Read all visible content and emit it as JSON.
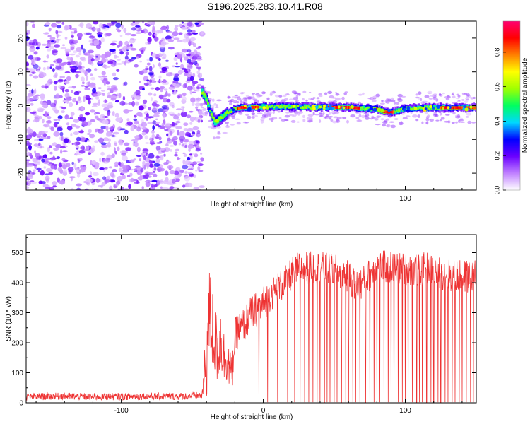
{
  "title": "S196.2025.283.10.41.R08",
  "chart_data": [
    {
      "type": "heatmap",
      "title": "S196.2025.283.10.41.R08",
      "xlabel": "Height of straight line (km)",
      "ylabel": "Frequency (Hz)",
      "xlim": [
        -167,
        150
      ],
      "ylim": [
        -25,
        25
      ],
      "xticks": [
        -100,
        0,
        100
      ],
      "yticks": [
        -20,
        -10,
        0,
        10,
        20
      ],
      "colorbar": {
        "label": "Normalized spectral amplitude",
        "range": [
          0,
          0.98
        ],
        "ticks": [
          "0.0",
          "0.2",
          "0.4",
          "0.6",
          "0.8"
        ],
        "colors": [
          "#ffffff",
          "#c080ff",
          "#6a00ff",
          "#0000ff",
          "#00d8ff",
          "#00ff60",
          "#a0ff00",
          "#ffff00",
          "#ff8000",
          "#ff0000",
          "#ff0070"
        ]
      },
      "noise_region_x": [
        -167,
        -43
      ],
      "tone_track": {
        "x": [
          -43,
          -40,
          -37,
          -34,
          -31,
          -28,
          -25,
          -20,
          -15,
          -10,
          -5,
          0,
          10,
          20,
          40,
          60,
          80,
          85,
          90,
          95,
          100,
          120,
          150
        ],
        "frequency": [
          4,
          2,
          -2,
          -5,
          -4,
          -3,
          -2,
          -1,
          -0.5,
          -0.5,
          -0.5,
          -0.3,
          -0.3,
          -0.3,
          -0.5,
          -0.5,
          -1,
          -1.8,
          -2,
          -1.5,
          -0.8,
          -0.6,
          -0.6
        ],
        "peak_amplitude_segments": [
          [
            -18,
            -12
          ],
          [
            -8,
            -3
          ],
          [
            45,
            68
          ],
          [
            80,
            92
          ],
          [
            125,
            150
          ]
        ]
      }
    },
    {
      "type": "line",
      "xlabel": "Height of straight line (km)",
      "ylabel": "SNR (10 * v/v)",
      "xlim": [
        -167,
        150
      ],
      "ylim": [
        0,
        560
      ],
      "xticks": [
        -100,
        0,
        100
      ],
      "yticks": [
        0,
        100,
        200,
        300,
        400,
        500
      ],
      "color": "#ee3333",
      "x": [
        -167,
        -140,
        -120,
        -100,
        -80,
        -60,
        -43,
        -40,
        -38,
        -36,
        -34,
        -32,
        -30,
        -28,
        -26,
        -24,
        -22,
        -20,
        -18,
        -15,
        -12,
        -10,
        -5,
        0,
        5,
        10,
        15,
        20,
        25,
        30,
        40,
        50,
        55,
        60,
        65,
        70,
        80,
        90,
        100,
        110,
        115,
        120,
        130,
        140,
        150
      ],
      "y": [
        20,
        22,
        20,
        21,
        22,
        21,
        25,
        150,
        300,
        250,
        200,
        170,
        220,
        150,
        160,
        120,
        90,
        220,
        240,
        250,
        270,
        290,
        310,
        330,
        360,
        380,
        400,
        430,
        450,
        450,
        450,
        440,
        430,
        420,
        390,
        400,
        455,
        450,
        445,
        440,
        450,
        440,
        425,
        420,
        420
      ],
      "spread": [
        12,
        12,
        12,
        12,
        12,
        12,
        12,
        150,
        150,
        150,
        120,
        110,
        110,
        100,
        90,
        70,
        60,
        60,
        60,
        60,
        60,
        60,
        60,
        60,
        55,
        55,
        55,
        55,
        55,
        55,
        55,
        55,
        55,
        55,
        55,
        55,
        55,
        55,
        55,
        55,
        55,
        55,
        55,
        55,
        55
      ],
      "dropout_x": [
        -3,
        3,
        10,
        17,
        22,
        26,
        29,
        32,
        35,
        38,
        40,
        43,
        45,
        47,
        50,
        52,
        55,
        58,
        60,
        63,
        65,
        68,
        72,
        75,
        78,
        80,
        82,
        85,
        88,
        90,
        92,
        95,
        98,
        100,
        102,
        105,
        108,
        110,
        112,
        115,
        118,
        120,
        123,
        125,
        128,
        130,
        133,
        135,
        138,
        140,
        143,
        146,
        148
      ]
    }
  ]
}
